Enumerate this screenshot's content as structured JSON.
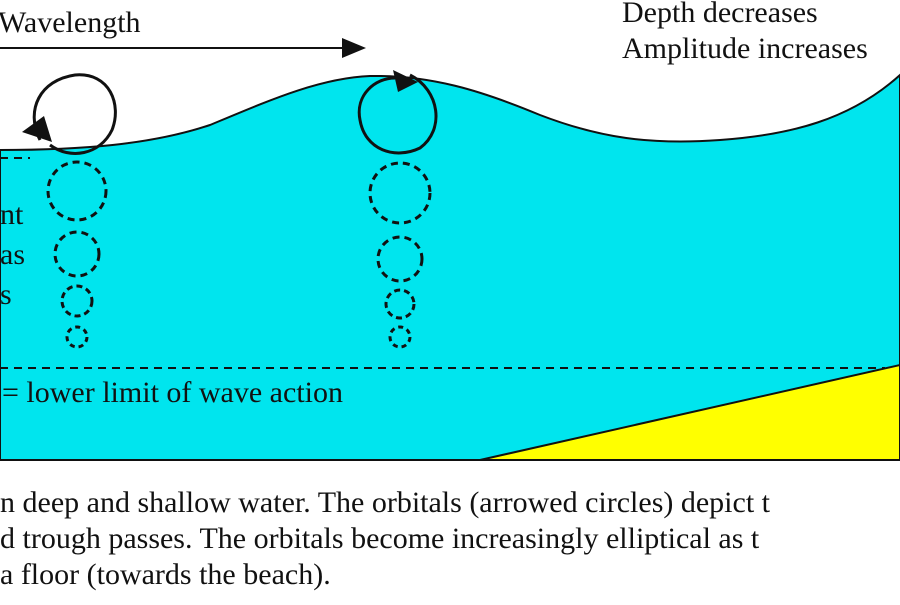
{
  "labels": {
    "wavelength": "Wavelength",
    "depth_decreases": "Depth decreases",
    "amplitude_increases": "Amplitude increases",
    "side_line_1": "nt",
    "side_line_2": "as",
    "side_line_3": "s",
    "lower_limit": "= lower limit of wave action"
  },
  "caption": {
    "line1": "n deep and shallow water. The orbitals (arrowed circles) depict t",
    "line2": "d trough passes. The orbitals become increasingly elliptical as t",
    "line3": "a floor (towards the beach)."
  },
  "colors": {
    "water": "#00e5ee",
    "sand": "#ffff00",
    "line": "#111111"
  }
}
